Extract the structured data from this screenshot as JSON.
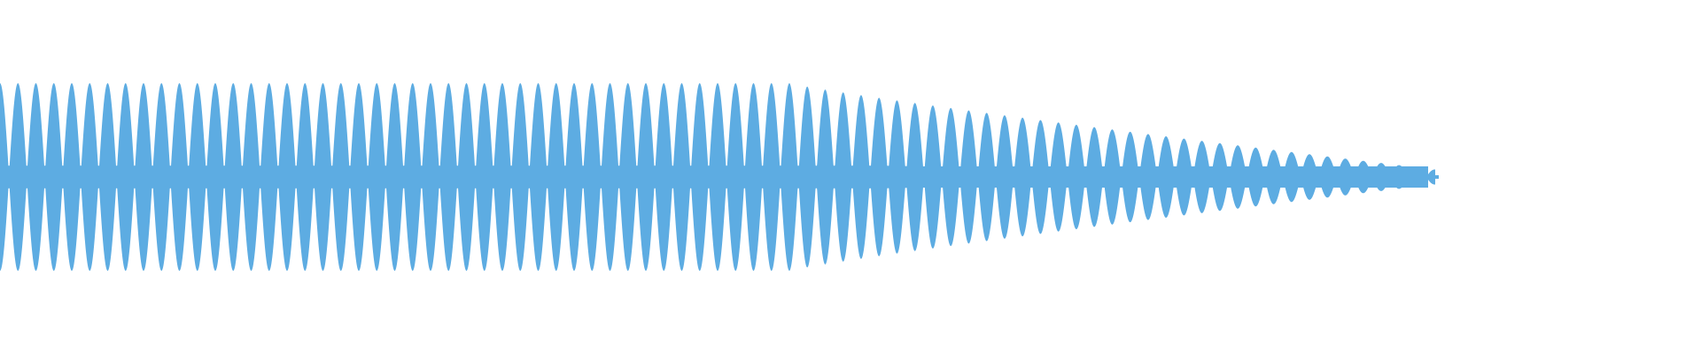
{
  "waveform": {
    "color": "#5DACE2",
    "background": "#FFFFFF",
    "cycle_count": 80,
    "peak_amplitude": 1.0,
    "sustain_fraction": 0.55,
    "end_amplitude": 0.08,
    "baseline_fraction": 0.12,
    "sustain_trough_fraction": 0.02
  }
}
